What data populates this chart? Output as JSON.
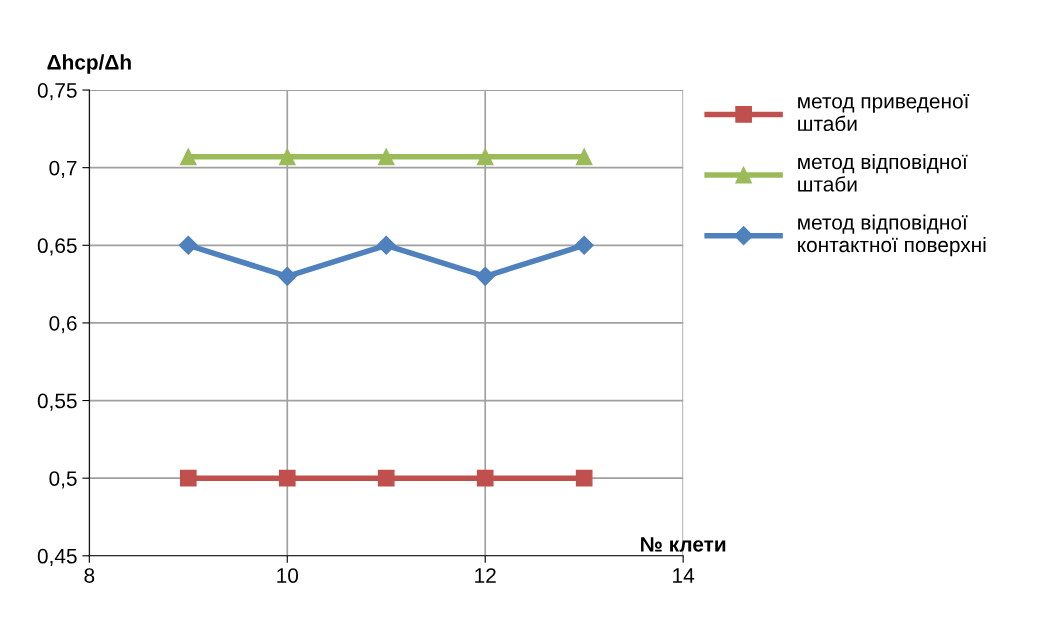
{
  "chart_data": {
    "type": "line",
    "ylabel": "Δhср/Δh",
    "xlabel": "№ клети",
    "x": [
      9,
      10,
      11,
      12,
      13
    ],
    "series": [
      {
        "name": "метод приведеної штаби",
        "color": "#c0504d",
        "marker": "square",
        "values": [
          0.5,
          0.5,
          0.5,
          0.5,
          0.5
        ]
      },
      {
        "name": "метод відповідної штаби",
        "color": "#9bbb59",
        "marker": "triangle",
        "values": [
          0.707,
          0.707,
          0.707,
          0.707,
          0.707
        ]
      },
      {
        "name": "метод відповідної контактної поверхні",
        "color": "#4f81bd",
        "marker": "diamond",
        "values": [
          0.65,
          0.63,
          0.65,
          0.63,
          0.65
        ]
      }
    ],
    "xlim": [
      8,
      14
    ],
    "xticks": [
      8,
      10,
      12,
      14
    ],
    "ylim": [
      0.45,
      0.75
    ],
    "yticks": [
      {
        "value": 0.45,
        "label": "0,45"
      },
      {
        "value": 0.5,
        "label": "0,5"
      },
      {
        "value": 0.55,
        "label": "0,55"
      },
      {
        "value": 0.6,
        "label": "0,6"
      },
      {
        "value": 0.65,
        "label": "0,65"
      },
      {
        "value": 0.7,
        "label": "0,7"
      },
      {
        "value": 0.75,
        "label": "0,75"
      }
    ],
    "grid": true,
    "legend": "right",
    "line_style": "solid"
  }
}
